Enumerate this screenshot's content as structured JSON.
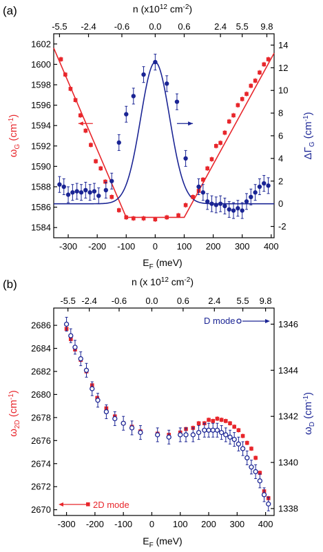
{
  "colors": {
    "red": "#e8262b",
    "blue": "#1a2494",
    "axis": "#000000"
  },
  "chart_data": [
    {
      "panel_label": "(a)",
      "type": "scatter",
      "xlabel_main": "E",
      "xlabel_sub": "F",
      "xlabel_unit": " (meV)",
      "xlim": [
        -350,
        410
      ],
      "xticks": [
        -300,
        -200,
        -100,
        0,
        100,
        200,
        300,
        400
      ],
      "top_axis_label_pre": "n (x10",
      "top_axis_label_exp": "12",
      "top_axis_label_mid": " cm",
      "top_axis_label_exp2": "-2",
      "top_axis_label_post": ")",
      "top_ticks": [
        {
          "x": -330,
          "label": "-5.5"
        },
        {
          "x": -230,
          "label": "-2.4"
        },
        {
          "x": -115,
          "label": "-0.6"
        },
        {
          "x": 0,
          "label": "0.0"
        },
        {
          "x": 100,
          "label": "0.6"
        },
        {
          "x": 225,
          "label": "2.4"
        },
        {
          "x": 300,
          "label": "5.5"
        },
        {
          "x": 385,
          "label": "9.8"
        }
      ],
      "left_ylabel_main": "ω",
      "left_ylabel_sub": "G",
      "left_ylabel_unit": " (cm",
      "left_ylabel_exp": "-1",
      "left_ylabel_post": ")",
      "left_ylim": [
        1583,
        1603
      ],
      "left_yticks": [
        1584,
        1586,
        1588,
        1590,
        1592,
        1594,
        1596,
        1598,
        1600,
        1602
      ],
      "right_ylabel_main": "ΔΓ",
      "right_ylabel_sub": "G",
      "right_ylabel_unit": " (cm",
      "right_ylabel_exp": "-1",
      "right_ylabel_post": ")",
      "right_ylim": [
        -3,
        15
      ],
      "right_yticks": [
        -2,
        0,
        2,
        4,
        6,
        8,
        10,
        12,
        14
      ],
      "red_series": {
        "axis": "left",
        "x": [
          -325,
          -310,
          -292,
          -275,
          -258,
          -240,
          -222,
          -205,
          -188,
          -172,
          -150,
          -125,
          -100,
          -75,
          -40,
          0,
          40,
          80,
          105,
          130,
          150,
          165,
          180,
          195,
          210,
          225,
          240,
          255,
          270,
          285,
          300,
          315,
          330,
          345,
          360,
          375,
          390
        ],
        "y": [
          1600.5,
          1599.0,
          1597.6,
          1596.5,
          1595.0,
          1593.5,
          1592.1,
          1590.5,
          1589.8,
          1588.5,
          1587.0,
          1585.7,
          1585.0,
          1584.9,
          1584.9,
          1584.8,
          1585.0,
          1585.2,
          1586.2,
          1587.0,
          1587.6,
          1588.7,
          1589.8,
          1590.7,
          1592.0,
          1592.3,
          1593.3,
          1594.4,
          1595.0,
          1596.0,
          1596.6,
          1597.1,
          1597.9,
          1598.4,
          1599.2,
          1600.0,
          1600.5
        ],
        "err": 0.25
      },
      "blue_series": {
        "axis": "right",
        "x": [
          -330,
          -315,
          -300,
          -285,
          -270,
          -255,
          -240,
          -225,
          -210,
          -195,
          -170,
          -150,
          -125,
          -100,
          -75,
          -40,
          0,
          40,
          75,
          105,
          150,
          165,
          180,
          195,
          210,
          225,
          240,
          255,
          270,
          285,
          300,
          315,
          330,
          345,
          360,
          375,
          390
        ],
        "y": [
          1.7,
          1.5,
          0.8,
          1.0,
          1.1,
          1.0,
          1.2,
          1.0,
          1.1,
          0.7,
          1.2,
          2.0,
          5.4,
          7.9,
          9.5,
          11.4,
          12.5,
          10.6,
          9.0,
          4.0,
          1.5,
          1.0,
          0.2,
          0.0,
          -0.1,
          0.0,
          -0.2,
          -0.5,
          -0.6,
          -0.4,
          -0.6,
          0.2,
          0.6,
          1.0,
          1.5,
          1.8,
          1.6
        ],
        "err": 0.7
      },
      "red_fit": {
        "x": [
          -350,
          -100,
          100,
          410
        ],
        "y": [
          1601.6,
          1585.0,
          1585.0,
          1601.1
        ]
      },
      "blue_fit": {
        "baseline": 0.0,
        "amplitude": 12.5,
        "center": 0,
        "sigma": 50
      },
      "arrows": [
        {
          "series": "red",
          "direction": "left",
          "x_from": -215,
          "x_to": -265,
          "y_left": 1594.2
        },
        {
          "series": "blue",
          "direction": "right",
          "x_from": 75,
          "x_to": 130,
          "y_left": 1594.2
        }
      ]
    },
    {
      "panel_label": "(b)",
      "type": "scatter",
      "xlabel_main": "E",
      "xlabel_sub": "F",
      "xlabel_unit": " (meV)",
      "xlim": [
        -345,
        430
      ],
      "xticks": [
        -300,
        -200,
        -100,
        0,
        100,
        200,
        300,
        400
      ],
      "top_axis_label_pre": "n (x 10",
      "top_axis_label_exp": "12",
      "top_axis_label_mid": " cm",
      "top_axis_label_exp2": "-2",
      "top_axis_label_post": ")",
      "top_ticks": [
        {
          "x": -295,
          "label": "-5.5"
        },
        {
          "x": -220,
          "label": "-2.4"
        },
        {
          "x": -115,
          "label": "-0.6"
        },
        {
          "x": 0,
          "label": "0.0"
        },
        {
          "x": 110,
          "label": "0.6"
        },
        {
          "x": 220,
          "label": "2.4"
        },
        {
          "x": 320,
          "label": "5.5"
        },
        {
          "x": 400,
          "label": "9.8"
        }
      ],
      "left_ylabel_main": "ω",
      "left_ylabel_sub": "2D",
      "left_ylabel_unit": " (cm",
      "left_ylabel_exp": "-1",
      "left_ylabel_post": ")",
      "left_ylim": [
        2669.5,
        2687.5
      ],
      "left_yticks": [
        2670,
        2672,
        2674,
        2676,
        2678,
        2680,
        2682,
        2684,
        2686
      ],
      "right_ylabel_main": "ω",
      "right_ylabel_sub": "D",
      "right_ylabel_unit": " (cm",
      "right_ylabel_exp": "-1",
      "right_ylabel_post": ")",
      "right_ylim": [
        1337.7,
        1346.7
      ],
      "right_yticks": [
        1338,
        1340,
        1342,
        1344,
        1346
      ],
      "red_series": {
        "axis": "left",
        "name": "2D mode",
        "x": [
          -300,
          -285,
          -270,
          -250,
          -230,
          -210,
          -192,
          -160,
          -130,
          -100,
          -70,
          -40,
          20,
          60,
          100,
          120,
          145,
          165,
          185,
          200,
          215,
          230,
          245,
          260,
          275,
          290,
          305,
          320,
          335,
          350,
          365,
          380,
          395,
          410
        ],
        "y": [
          2685.7,
          2684.8,
          2683.9,
          2683.0,
          2682.0,
          2680.8,
          2679.7,
          2678.8,
          2678.1,
          2677.5,
          2677.2,
          2676.8,
          2676.6,
          2676.5,
          2676.7,
          2677.0,
          2677.1,
          2677.5,
          2677.5,
          2677.8,
          2677.7,
          2677.9,
          2677.8,
          2677.7,
          2677.5,
          2677.2,
          2676.9,
          2676.4,
          2675.8,
          2675.3,
          2674.5,
          2673.2,
          2671.6,
          2671.0
        ],
        "err": 0.2
      },
      "blue_series": {
        "axis": "right",
        "name": "D mode",
        "x": [
          -300,
          -285,
          -270,
          -250,
          -230,
          -210,
          -190,
          -160,
          -130,
          -100,
          -70,
          -40,
          20,
          60,
          100,
          120,
          145,
          165,
          185,
          200,
          215,
          230,
          245,
          260,
          275,
          290,
          305,
          320,
          335,
          350,
          365,
          380,
          395,
          410
        ],
        "y": [
          1346.0,
          1345.5,
          1345.0,
          1344.5,
          1344.0,
          1343.2,
          1342.7,
          1342.2,
          1341.9,
          1341.7,
          1341.5,
          1341.3,
          1341.2,
          1341.1,
          1341.2,
          1341.2,
          1341.2,
          1341.3,
          1341.4,
          1341.4,
          1341.4,
          1341.4,
          1341.3,
          1341.2,
          1341.1,
          1341.0,
          1340.8,
          1340.6,
          1340.2,
          1339.8,
          1339.6,
          1339.2,
          1338.6,
          1338.2
        ],
        "err": 0.3
      },
      "legend_entries": [
        {
          "series": "blue",
          "label": "D mode",
          "position": "top-right",
          "arrow": "right"
        },
        {
          "series": "red",
          "label": "2D mode",
          "position": "bottom-left",
          "arrow": "left"
        }
      ]
    }
  ]
}
